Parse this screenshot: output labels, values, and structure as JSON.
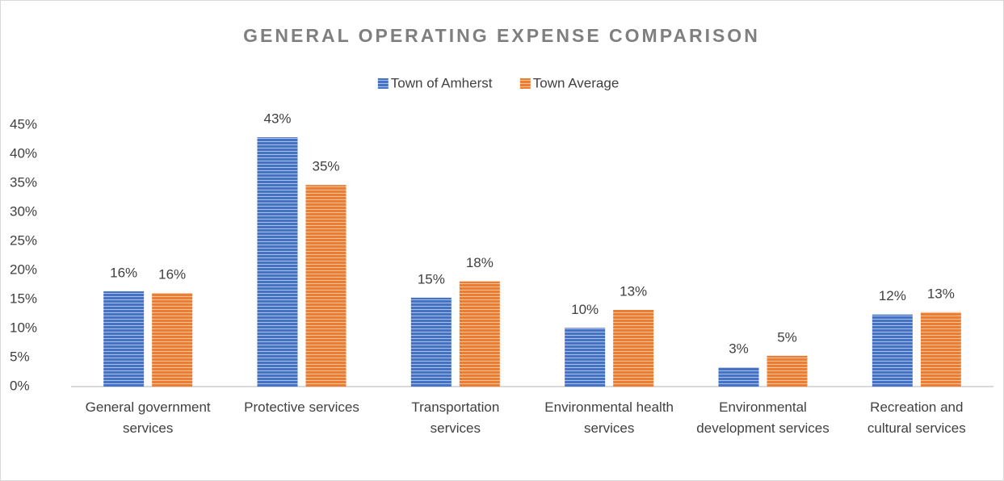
{
  "chart_data": {
    "type": "bar",
    "title": "GENERAL OPERATING EXPENSE COMPARISON",
    "categories": [
      "General government services",
      "Protective services",
      "Transportation services",
      "Environmental health services",
      "Environmental development services",
      "Recreation and cultural services"
    ],
    "series": [
      {
        "name": "Town of Amherst",
        "color": "#4472c4",
        "values": [
          16.4,
          42.9,
          15.3,
          10.1,
          3.3,
          12.4
        ],
        "value_labels": [
          "16%",
          "43%",
          "15%",
          "10%",
          "3%",
          "12%"
        ]
      },
      {
        "name": "Town Average",
        "color": "#ed7d31",
        "values": [
          16.1,
          34.7,
          18.1,
          13.2,
          5.3,
          12.8
        ],
        "value_labels": [
          "16%",
          "35%",
          "18%",
          "13%",
          "5%",
          "13%"
        ]
      }
    ],
    "ylim": [
      0,
      45
    ],
    "yticks": [
      {
        "value": 0,
        "label": "0%"
      },
      {
        "value": 5,
        "label": "5%"
      },
      {
        "value": 10,
        "label": "10%"
      },
      {
        "value": 15,
        "label": "15%"
      },
      {
        "value": 20,
        "label": "20%"
      },
      {
        "value": 25,
        "label": "25%"
      },
      {
        "value": 30,
        "label": "30%"
      },
      {
        "value": 35,
        "label": "35%"
      },
      {
        "value": 40,
        "label": "40%"
      },
      {
        "value": 45,
        "label": "45%"
      }
    ],
    "grid": false,
    "legend": "top"
  }
}
